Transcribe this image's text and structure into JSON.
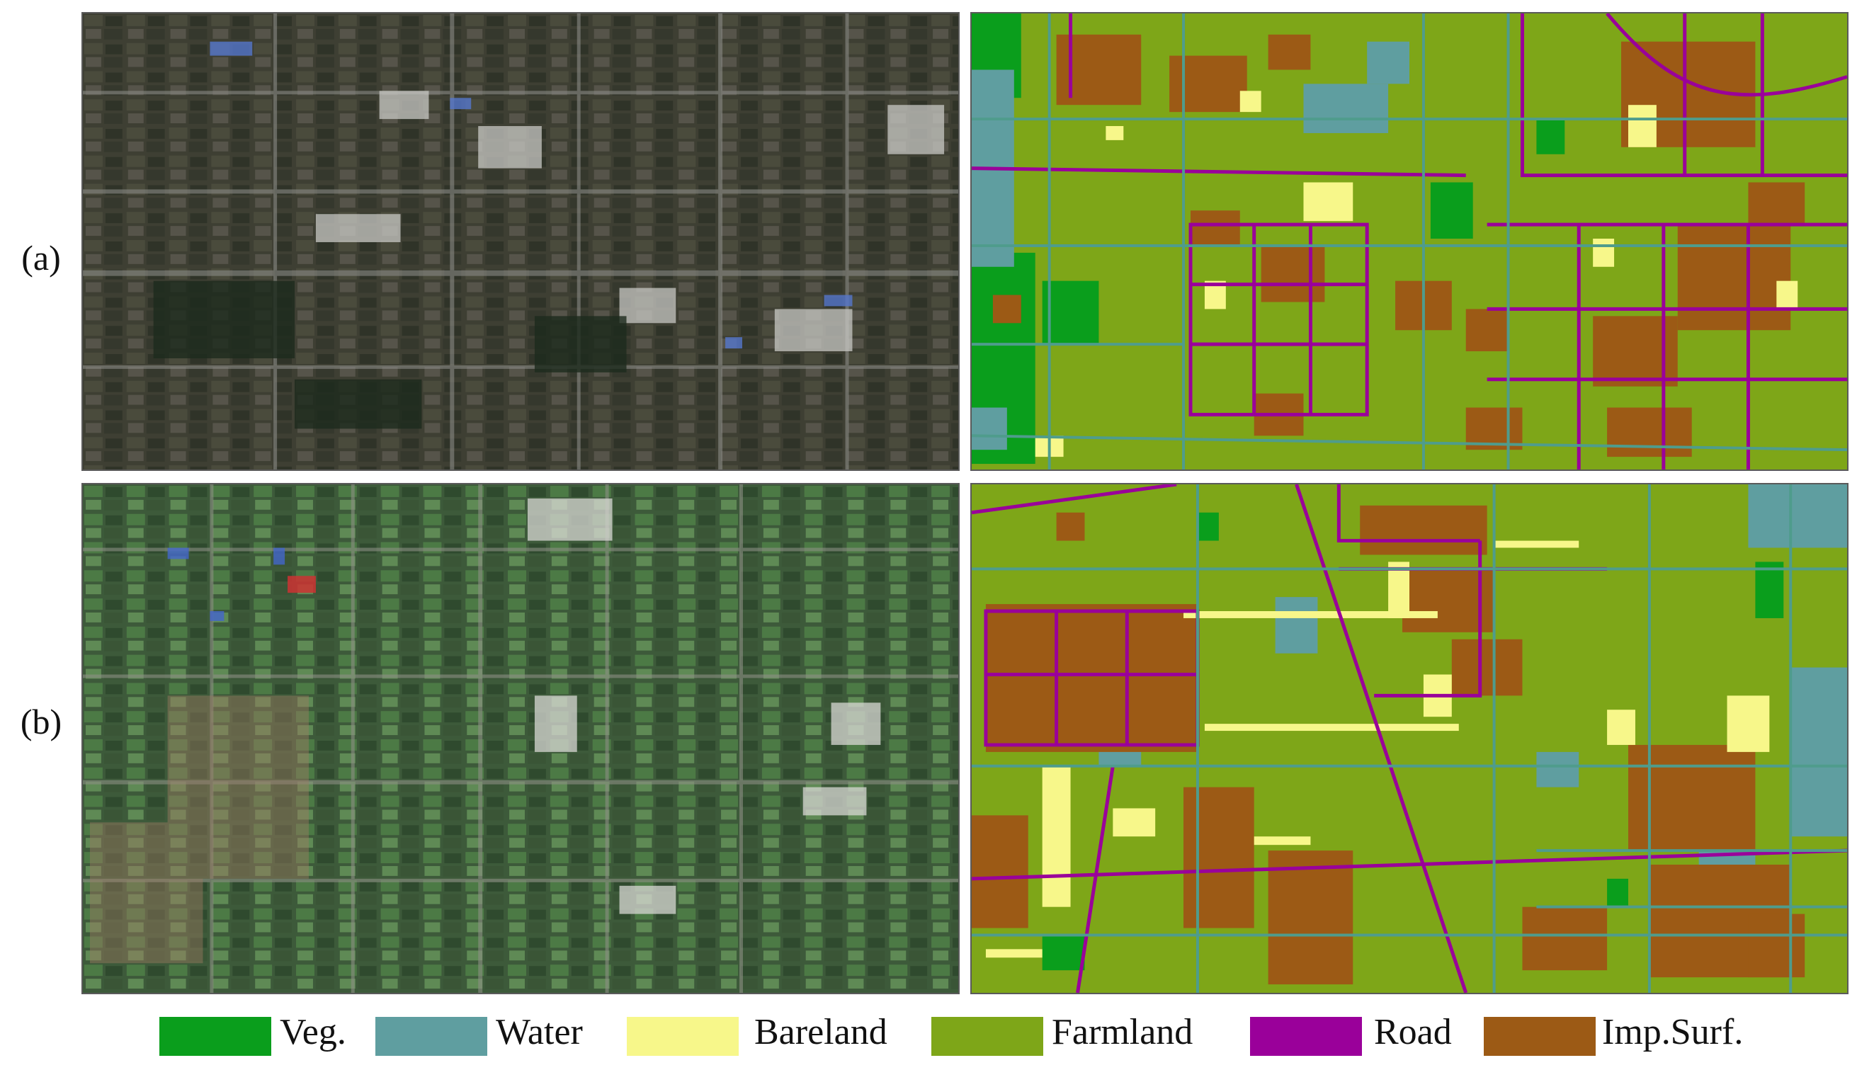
{
  "rows": [
    {
      "label": "(a)"
    },
    {
      "label": "(b)"
    }
  ],
  "legend": [
    {
      "label": "Veg.",
      "color": "#0a9e1c"
    },
    {
      "label": "Water",
      "color": "#5f9ea0"
    },
    {
      "label": "Bareland",
      "color": "#f7f78a"
    },
    {
      "label": "Farmland",
      "color": "#7ea618"
    },
    {
      "label": "Road",
      "color": "#9a009a"
    },
    {
      "label": "Imp.Surf.",
      "color": "#9c5a15"
    }
  ]
}
